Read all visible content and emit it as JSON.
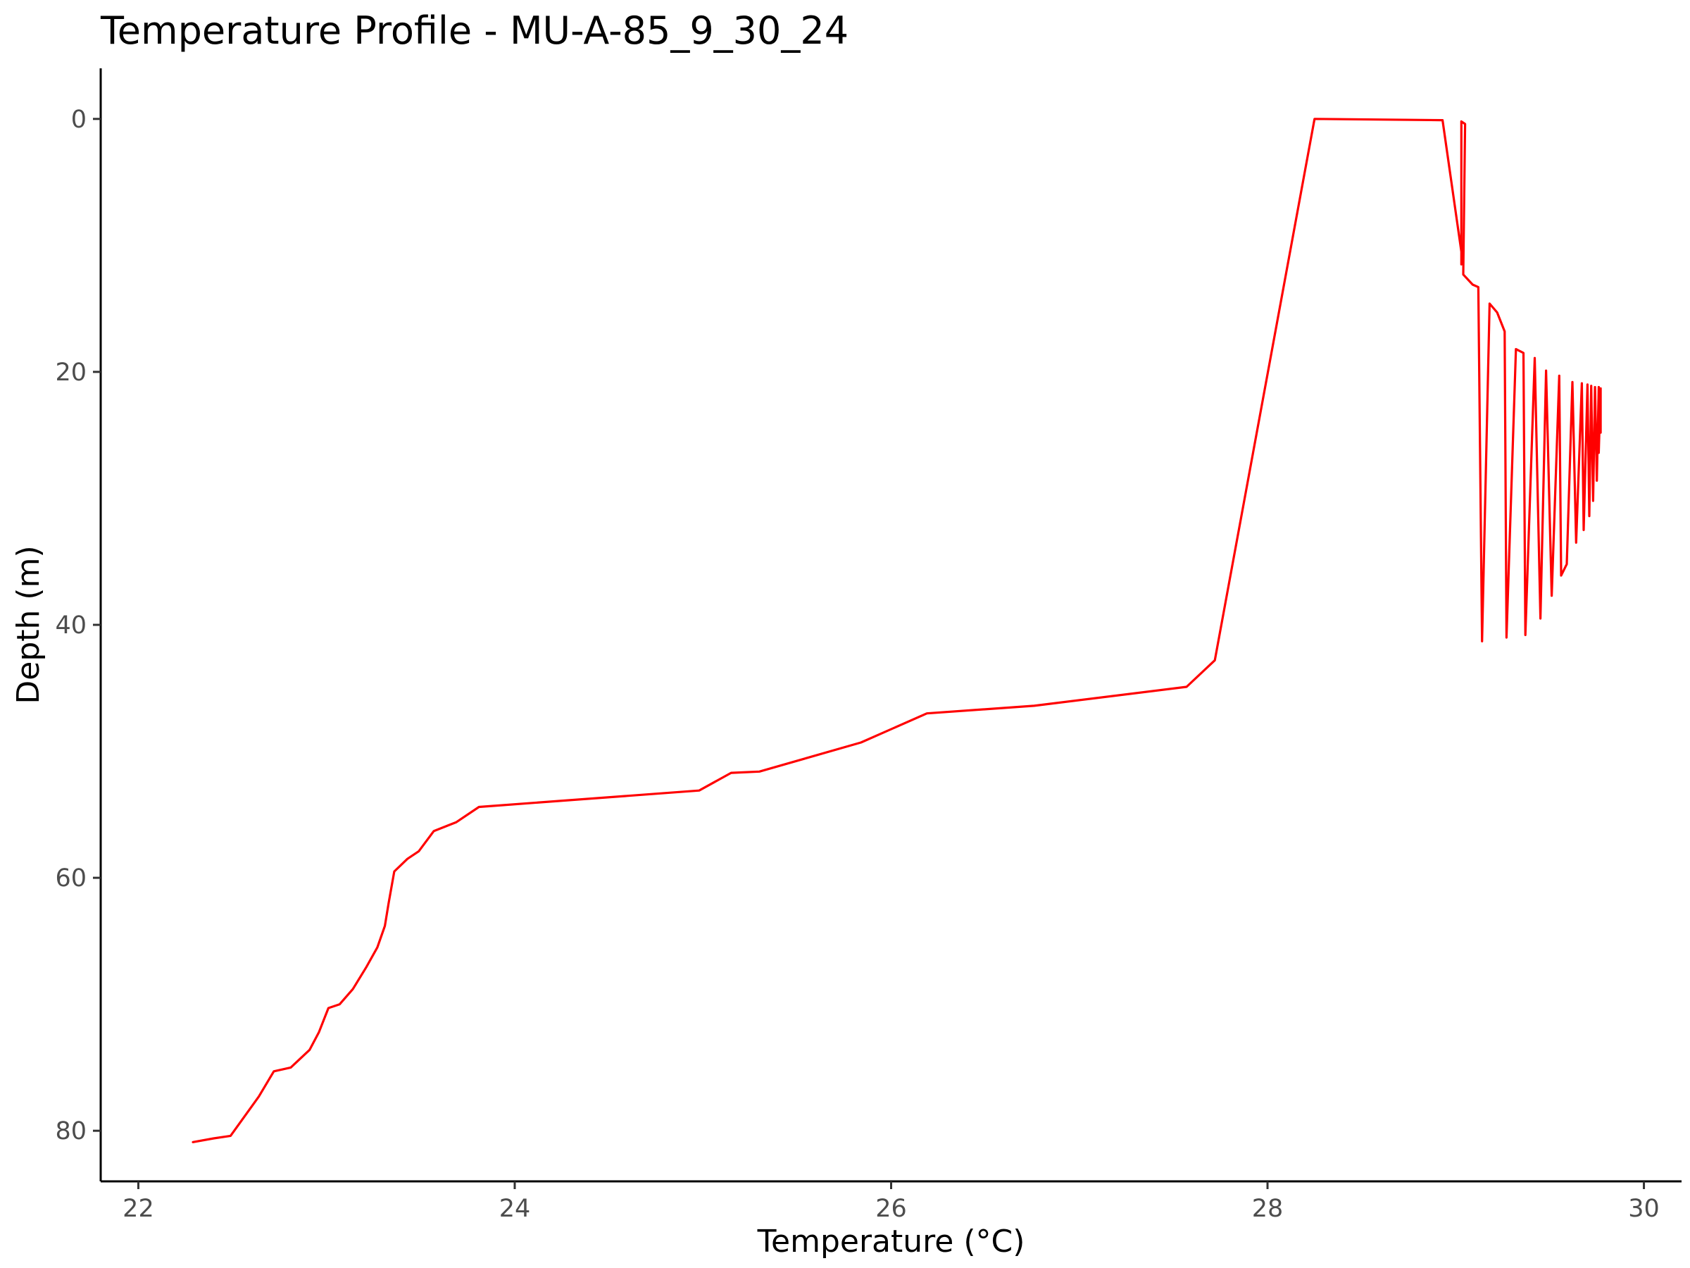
{
  "chart_data": {
    "type": "line",
    "title": "Temperature Profile - MU-A-85_9_30_24",
    "xlabel": "Temperature (°C)",
    "ylabel": "Depth (m)",
    "xlim": [
      21.8,
      30.2
    ],
    "ylim": [
      84.0,
      -4.0
    ],
    "y_reversed": true,
    "x_ticks": [
      22,
      24,
      26,
      28,
      30
    ],
    "y_ticks": [
      0,
      20,
      40,
      60,
      80
    ],
    "grid": false,
    "legend": "none",
    "series": [
      {
        "color": "#ff0000",
        "points": [
          [
            22.29,
            80.9
          ],
          [
            22.4,
            80.6
          ],
          [
            22.49,
            80.4
          ],
          [
            22.64,
            77.3
          ],
          [
            22.72,
            75.3
          ],
          [
            22.81,
            75.0
          ],
          [
            22.91,
            73.6
          ],
          [
            22.96,
            72.2
          ],
          [
            23.01,
            70.3
          ],
          [
            23.07,
            70.0
          ],
          [
            23.14,
            68.8
          ],
          [
            23.21,
            67.1
          ],
          [
            23.27,
            65.5
          ],
          [
            23.31,
            63.8
          ],
          [
            23.33,
            62.0
          ],
          [
            23.36,
            59.5
          ],
          [
            23.43,
            58.5
          ],
          [
            23.49,
            57.9
          ],
          [
            23.57,
            56.3
          ],
          [
            23.69,
            55.6
          ],
          [
            23.81,
            54.4
          ],
          [
            24.98,
            53.1
          ],
          [
            25.15,
            51.7
          ],
          [
            25.3,
            51.6
          ],
          [
            25.84,
            49.3
          ],
          [
            26.19,
            47.0
          ],
          [
            26.76,
            46.4
          ],
          [
            27.57,
            44.9
          ],
          [
            27.72,
            42.8
          ],
          [
            28.25,
            0.0
          ],
          [
            28.93,
            0.1
          ],
          [
            29.03,
            10.5
          ],
          [
            29.03,
            11.5
          ],
          [
            29.03,
            0.2
          ],
          [
            29.05,
            0.4
          ],
          [
            29.04,
            12.3
          ],
          [
            29.09,
            13.1
          ],
          [
            29.12,
            13.3
          ],
          [
            29.14,
            41.3
          ],
          [
            29.18,
            14.6
          ],
          [
            29.22,
            15.3
          ],
          [
            29.26,
            16.8
          ],
          [
            29.27,
            41.0
          ],
          [
            29.32,
            18.2
          ],
          [
            29.36,
            18.5
          ],
          [
            29.37,
            40.8
          ],
          [
            29.42,
            18.9
          ],
          [
            29.45,
            39.5
          ],
          [
            29.48,
            19.9
          ],
          [
            29.51,
            37.7
          ],
          [
            29.55,
            20.3
          ],
          [
            29.56,
            36.1
          ],
          [
            29.59,
            35.2
          ],
          [
            29.62,
            20.8
          ],
          [
            29.64,
            33.5
          ],
          [
            29.67,
            20.9
          ],
          [
            29.68,
            32.5
          ],
          [
            29.7,
            21.0
          ],
          [
            29.71,
            31.4
          ],
          [
            29.72,
            21.1
          ],
          [
            29.73,
            30.2
          ],
          [
            29.74,
            21.2
          ],
          [
            29.75,
            28.6
          ],
          [
            29.76,
            21.2
          ],
          [
            29.76,
            26.4
          ],
          [
            29.77,
            21.3
          ],
          [
            29.77,
            24.8
          ],
          [
            29.77,
            21.3
          ],
          [
            29.77,
            23.4
          ],
          [
            29.77,
            21.3
          ]
        ]
      }
    ]
  }
}
